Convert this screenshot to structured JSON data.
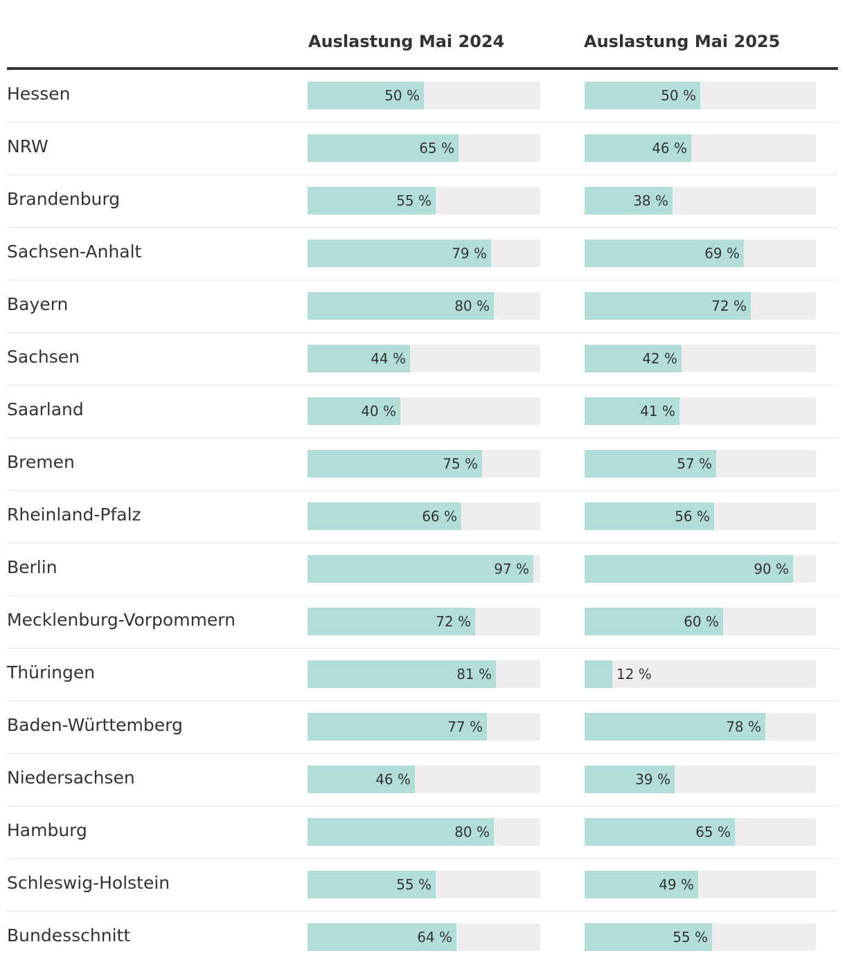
{
  "chart_data": {
    "type": "table",
    "columns": [
      "Auslastung Mai 2024",
      "Auslastung Mai 2025"
    ],
    "unit": "%",
    "scale_max": 100,
    "colors": {
      "bar": "#b2ddd9",
      "track": "#eeeeee",
      "text": "#333333",
      "rule": "#333333",
      "divider": "#e4e4e4"
    },
    "rows": [
      {
        "label": "Hessen",
        "v2024": 50,
        "v2025": 50,
        "t2024": "50 %",
        "t2025": "50 %"
      },
      {
        "label": "NRW",
        "v2024": 65,
        "v2025": 46,
        "t2024": "65 %",
        "t2025": "46 %"
      },
      {
        "label": "Brandenburg",
        "v2024": 55,
        "v2025": 38,
        "t2024": "55 %",
        "t2025": "38 %"
      },
      {
        "label": "Sachsen-Anhalt",
        "v2024": 79,
        "v2025": 69,
        "t2024": "79 %",
        "t2025": "69 %"
      },
      {
        "label": "Bayern",
        "v2024": 80,
        "v2025": 72,
        "t2024": "80 %",
        "t2025": "72 %"
      },
      {
        "label": "Sachsen",
        "v2024": 44,
        "v2025": 42,
        "t2024": "44 %",
        "t2025": "42 %"
      },
      {
        "label": "Saarland",
        "v2024": 40,
        "v2025": 41,
        "t2024": "40 %",
        "t2025": "41 %"
      },
      {
        "label": "Bremen",
        "v2024": 75,
        "v2025": 57,
        "t2024": "75 %",
        "t2025": "57 %"
      },
      {
        "label": "Rheinland-Pfalz",
        "v2024": 66,
        "v2025": 56,
        "t2024": "66 %",
        "t2025": "56 %"
      },
      {
        "label": "Berlin",
        "v2024": 97,
        "v2025": 90,
        "t2024": "97 %",
        "t2025": "90 %"
      },
      {
        "label": "Mecklenburg-Vorpommern",
        "v2024": 72,
        "v2025": 60,
        "t2024": "72 %",
        "t2025": "60 %"
      },
      {
        "label": "Thüringen",
        "v2024": 81,
        "v2025": 12,
        "t2024": "81 %",
        "t2025": "12 %"
      },
      {
        "label": "Baden-Württemberg",
        "v2024": 77,
        "v2025": 78,
        "t2024": "77 %",
        "t2025": "78 %"
      },
      {
        "label": "Niedersachsen",
        "v2024": 46,
        "v2025": 39,
        "t2024": "46 %",
        "t2025": "39 %"
      },
      {
        "label": "Hamburg",
        "v2024": 80,
        "v2025": 65,
        "t2024": "80 %",
        "t2025": "65 %"
      },
      {
        "label": "Schleswig-Holstein",
        "v2024": 55,
        "v2025": 49,
        "t2024": "55 %",
        "t2025": "49 %"
      },
      {
        "label": "Bundesschnitt",
        "v2024": 64,
        "v2025": 55,
        "t2024": "64 %",
        "t2025": "55 %"
      }
    ]
  }
}
